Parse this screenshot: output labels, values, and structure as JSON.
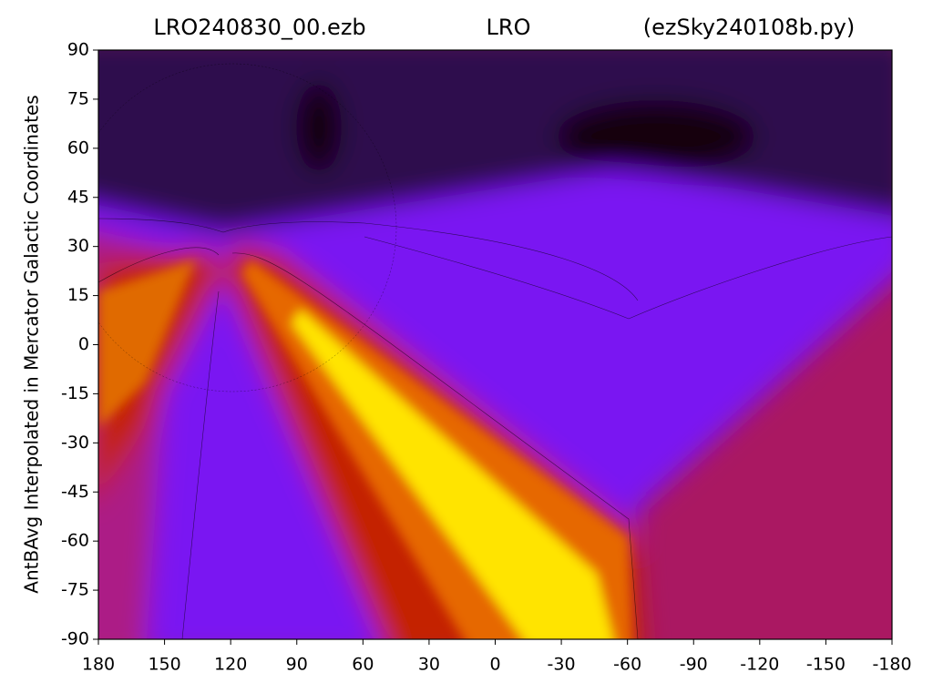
{
  "chart_data": {
    "type": "heatmap",
    "titles": [
      "LRO240830_00.ezb",
      "LRO",
      "(ezSky240108b.py)"
    ],
    "ylabel": "AntBAvg Interpolated in Mercator Galactic Coordinates",
    "xlim": [
      180,
      -180
    ],
    "ylim": [
      -90,
      90
    ],
    "xticks": [
      180,
      150,
      120,
      90,
      60,
      30,
      0,
      -30,
      -60,
      -90,
      -120,
      -150,
      -180
    ],
    "yticks": [
      90,
      75,
      60,
      45,
      30,
      15,
      0,
      -15,
      -30,
      -45,
      -60,
      -75,
      -90
    ]
  }
}
